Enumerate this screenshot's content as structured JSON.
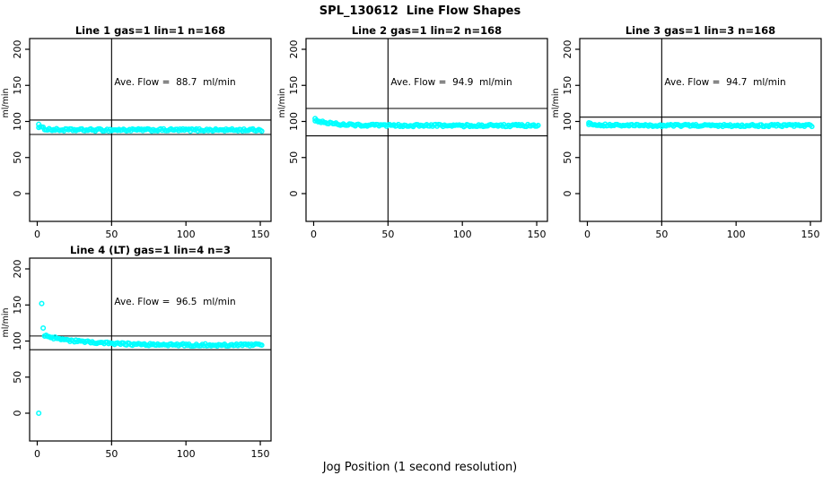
{
  "figure": {
    "title": "SPL_130612  Line Flow Shapes",
    "xlabel": "Jog Position (1 second resolution)",
    "background": "#FFFFFF",
    "point_color": "#00FFFF",
    "axis_color": "#000000"
  },
  "chart_data": [
    {
      "type": "scatter",
      "title": "Line 1 gas=1 lin=1 n=168",
      "annotation": "Ave. Flow =  88.7  ml/min",
      "ave_flow_ml_min": 88.7,
      "n": 168,
      "ylabel": "ml/min",
      "x_ticks": [
        0,
        50,
        100,
        150
      ],
      "y_ticks": [
        0,
        50,
        100,
        150,
        200
      ],
      "xlim": [
        -5,
        157
      ],
      "ylim": [
        -38,
        215
      ],
      "vline_x": 50,
      "ref_lines_y": [
        102,
        82
      ],
      "series": {
        "name": "flow",
        "model": "transient-settle",
        "x_range": [
          1,
          151
        ],
        "start_y": 93,
        "settle_y": 88.2,
        "tau": 4,
        "noise": 1.7,
        "outlier_points": [
          [
            1,
            96
          ]
        ]
      }
    },
    {
      "type": "scatter",
      "title": "Line 2 gas=1 lin=2 n=168",
      "annotation": "Ave. Flow =  94.9  ml/min",
      "ave_flow_ml_min": 94.9,
      "n": 168,
      "ylabel": "ml/min",
      "x_ticks": [
        0,
        50,
        100,
        150
      ],
      "y_ticks": [
        0,
        50,
        100,
        150,
        200
      ],
      "xlim": [
        -5,
        157
      ],
      "ylim": [
        -38,
        215
      ],
      "vline_x": 50,
      "ref_lines_y": [
        118,
        80
      ],
      "series": {
        "name": "flow",
        "model": "transient-settle",
        "x_range": [
          1,
          151
        ],
        "start_y": 102,
        "settle_y": 94.3,
        "tau": 12,
        "noise": 1.6,
        "outlier_points": [
          [
            1,
            104
          ]
        ]
      }
    },
    {
      "type": "scatter",
      "title": "Line 3 gas=1 lin=3 n=168",
      "annotation": "Ave. Flow =  94.7  ml/min",
      "ave_flow_ml_min": 94.7,
      "n": 168,
      "ylabel": "ml/min",
      "x_ticks": [
        0,
        50,
        100,
        150
      ],
      "y_ticks": [
        0,
        50,
        100,
        150,
        200
      ],
      "xlim": [
        -5,
        157
      ],
      "ylim": [
        -38,
        215
      ],
      "vline_x": 50,
      "ref_lines_y": [
        106,
        81
      ],
      "series": {
        "name": "flow",
        "model": "transient-settle",
        "x_range": [
          1,
          151
        ],
        "start_y": 96.5,
        "settle_y": 94.4,
        "tau": 10,
        "noise": 1.5,
        "outlier_points": [
          [
            1,
            98
          ]
        ]
      }
    },
    {
      "type": "scatter",
      "title": "Line 4 (LT) gas=1 lin=4 n=3",
      "annotation": "Ave. Flow =  96.5  ml/min",
      "ave_flow_ml_min": 96.5,
      "n": 3,
      "ylabel": "ml/min",
      "x_ticks": [
        0,
        50,
        100,
        150
      ],
      "y_ticks": [
        0,
        50,
        100,
        150,
        200
      ],
      "xlim": [
        -5,
        157
      ],
      "ylim": [
        -38,
        215
      ],
      "vline_x": 50,
      "ref_lines_y": [
        107,
        88
      ],
      "series": {
        "name": "flow",
        "model": "transient-settle",
        "x_range": [
          5,
          151
        ],
        "start_y": 107,
        "settle_y": 94.5,
        "tau": 25,
        "noise": 1.7,
        "outlier_points": [
          [
            1,
            0
          ],
          [
            3,
            152
          ],
          [
            4,
            118
          ],
          [
            5,
            107
          ]
        ]
      }
    }
  ]
}
